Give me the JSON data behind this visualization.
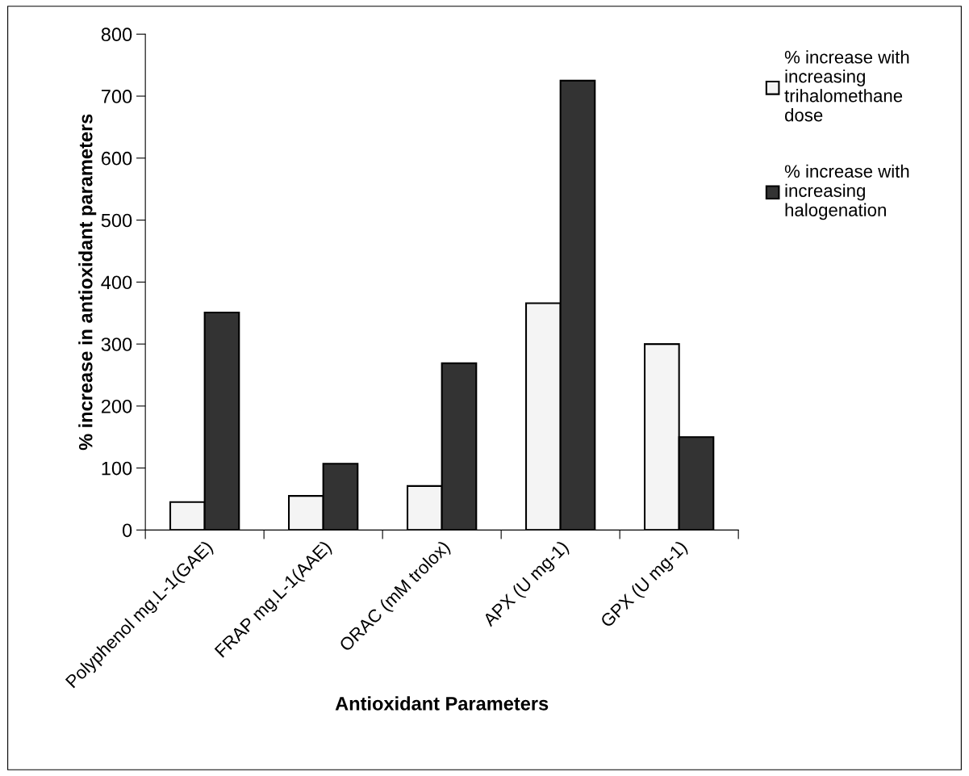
{
  "chart_data": {
    "type": "bar",
    "xlabel": "Antioxidant Parameters",
    "ylabel": "% increase in antioxidant parameters",
    "categories": [
      "Polyphenol mg.L-1(GAE)",
      "FRAP mg.L-1(AAE)",
      "ORAC (mM trolox)",
      "APX (U mg-1)",
      "GPX (U mg-1)"
    ],
    "series": [
      {
        "name": "% increase with increasing trihalomethane dose",
        "color": "#f4f4f4",
        "values": [
          45,
          55,
          71,
          366,
          300
        ]
      },
      {
        "name": "% increase with increasing halogenation",
        "color": "#333333",
        "values": [
          351,
          107,
          269,
          725,
          150
        ]
      }
    ],
    "ylim": [
      0,
      800
    ],
    "yticks": [
      0,
      100,
      200,
      300,
      400,
      500,
      600,
      700,
      800
    ],
    "grid": false,
    "legend": "top right"
  }
}
